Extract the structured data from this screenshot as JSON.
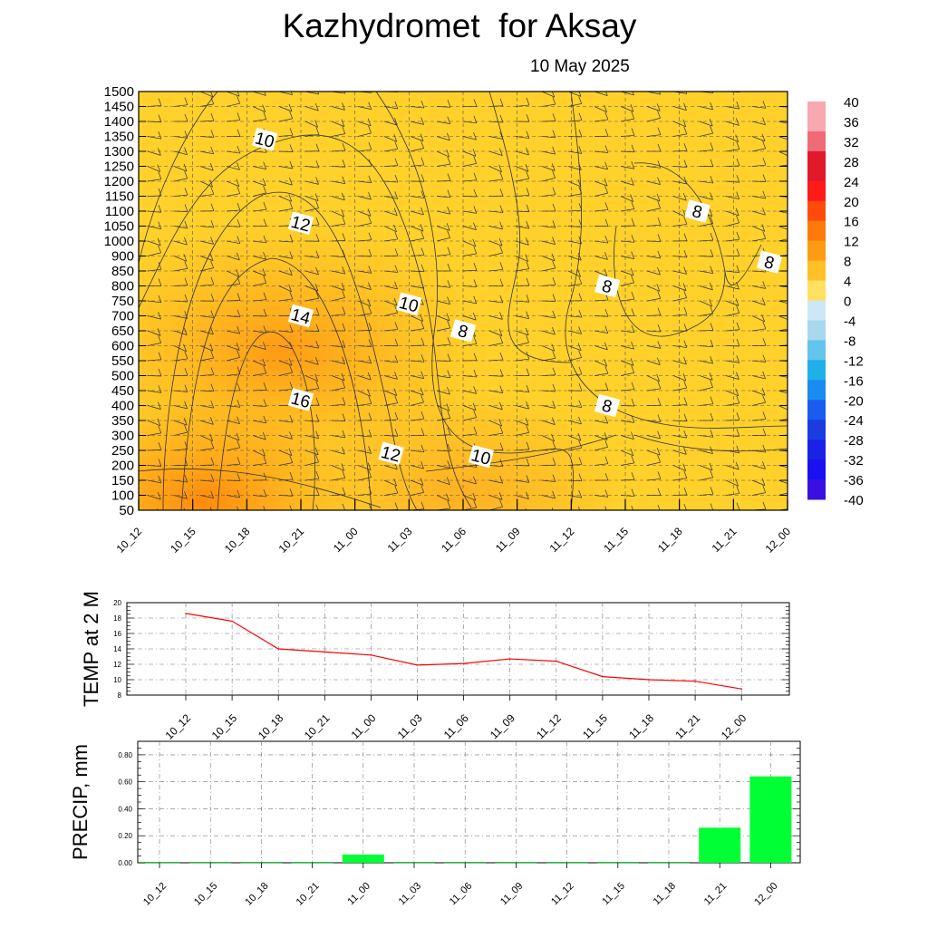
{
  "title": "Kazhydromet  for Aksay",
  "date": "10 May 2025",
  "chart_data": [
    {
      "type": "heatmap",
      "x_categories": [
        "10_12",
        "10_15",
        "10_18",
        "10_21",
        "11_00",
        "11_03",
        "11_06",
        "11_09",
        "11_12",
        "11_15",
        "11_18",
        "11_21",
        "12_00"
      ],
      "y_levels": [
        50,
        100,
        150,
        200,
        250,
        300,
        350,
        400,
        450,
        500,
        550,
        600,
        650,
        700,
        750,
        800,
        850,
        900,
        1000,
        1050,
        1100,
        1150,
        1200,
        1250,
        1300,
        1350,
        1400,
        1450,
        1500
      ],
      "y_tick_labels": [
        "50",
        "100",
        "150",
        "200",
        "250",
        "300",
        "350",
        "400",
        "450",
        "500",
        "550",
        "600",
        "650",
        "700",
        "750",
        "800",
        "850",
        "900",
        "1000",
        "1050",
        "1100",
        "1150",
        "1200",
        "1250",
        "1300",
        "1350",
        "1400",
        "1450",
        "1500"
      ],
      "colorbar_labels": [
        "40",
        "36",
        "32",
        "28",
        "24",
        "20",
        "16",
        "12",
        "8",
        "4",
        "0",
        "-4",
        "-8",
        "-12",
        "-16",
        "-20",
        "-24",
        "-28",
        "-32",
        "-36",
        "-40"
      ],
      "contour_labels": [
        {
          "text": "10",
          "x": "10_19",
          "y": 1340
        },
        {
          "text": "12",
          "x": "10_21",
          "y": 1060
        },
        {
          "text": "14",
          "x": "10_21",
          "y": 700
        },
        {
          "text": "16",
          "x": "10_21",
          "y": 420
        },
        {
          "text": "10",
          "x": "11_03",
          "y": 740
        },
        {
          "text": "12",
          "x": "11_02",
          "y": 240
        },
        {
          "text": "8",
          "x": "11_06",
          "y": 650
        },
        {
          "text": "10",
          "x": "11_07",
          "y": 230
        },
        {
          "text": "8",
          "x": "11_14",
          "y": 800
        },
        {
          "text": "8",
          "x": "11_14",
          "y": 400
        },
        {
          "text": "8",
          "x": "11_19",
          "y": 1100
        },
        {
          "text": "8",
          "x": "11_23",
          "y": 880
        }
      ]
    },
    {
      "type": "line",
      "ylabel": "TEMP at 2 M",
      "categories": [
        "10_12",
        "10_15",
        "10_18",
        "10_21",
        "11_00",
        "11_03",
        "11_06",
        "11_09",
        "11_12",
        "11_15",
        "11_18",
        "11_21",
        "12_00"
      ],
      "values": [
        18.6,
        17.6,
        14.0,
        13.6,
        13.2,
        11.9,
        12.1,
        12.7,
        12.4,
        10.4,
        10.0,
        9.8,
        8.8
      ],
      "ylim": [
        8,
        20
      ],
      "y_ticks": [
        "8",
        "10",
        "12",
        "14",
        "16",
        "18",
        "20"
      ],
      "color": "#ff0000"
    },
    {
      "type": "bar",
      "ylabel": "PRECIP, mm",
      "categories": [
        "10_12",
        "10_15",
        "10_18",
        "10_21",
        "11_00",
        "11_03",
        "11_06",
        "11_09",
        "11_12",
        "11_15",
        "11_18",
        "11_21",
        "12_00"
      ],
      "values": [
        0,
        0,
        0,
        0,
        0.06,
        0,
        0,
        0,
        0,
        0,
        0,
        0.26,
        0.64
      ],
      "ylim": [
        0,
        0.9
      ],
      "y_ticks": [
        "0.00",
        "0.20",
        "0.40",
        "0.60",
        "0.80"
      ],
      "color": "#00ff33"
    }
  ]
}
